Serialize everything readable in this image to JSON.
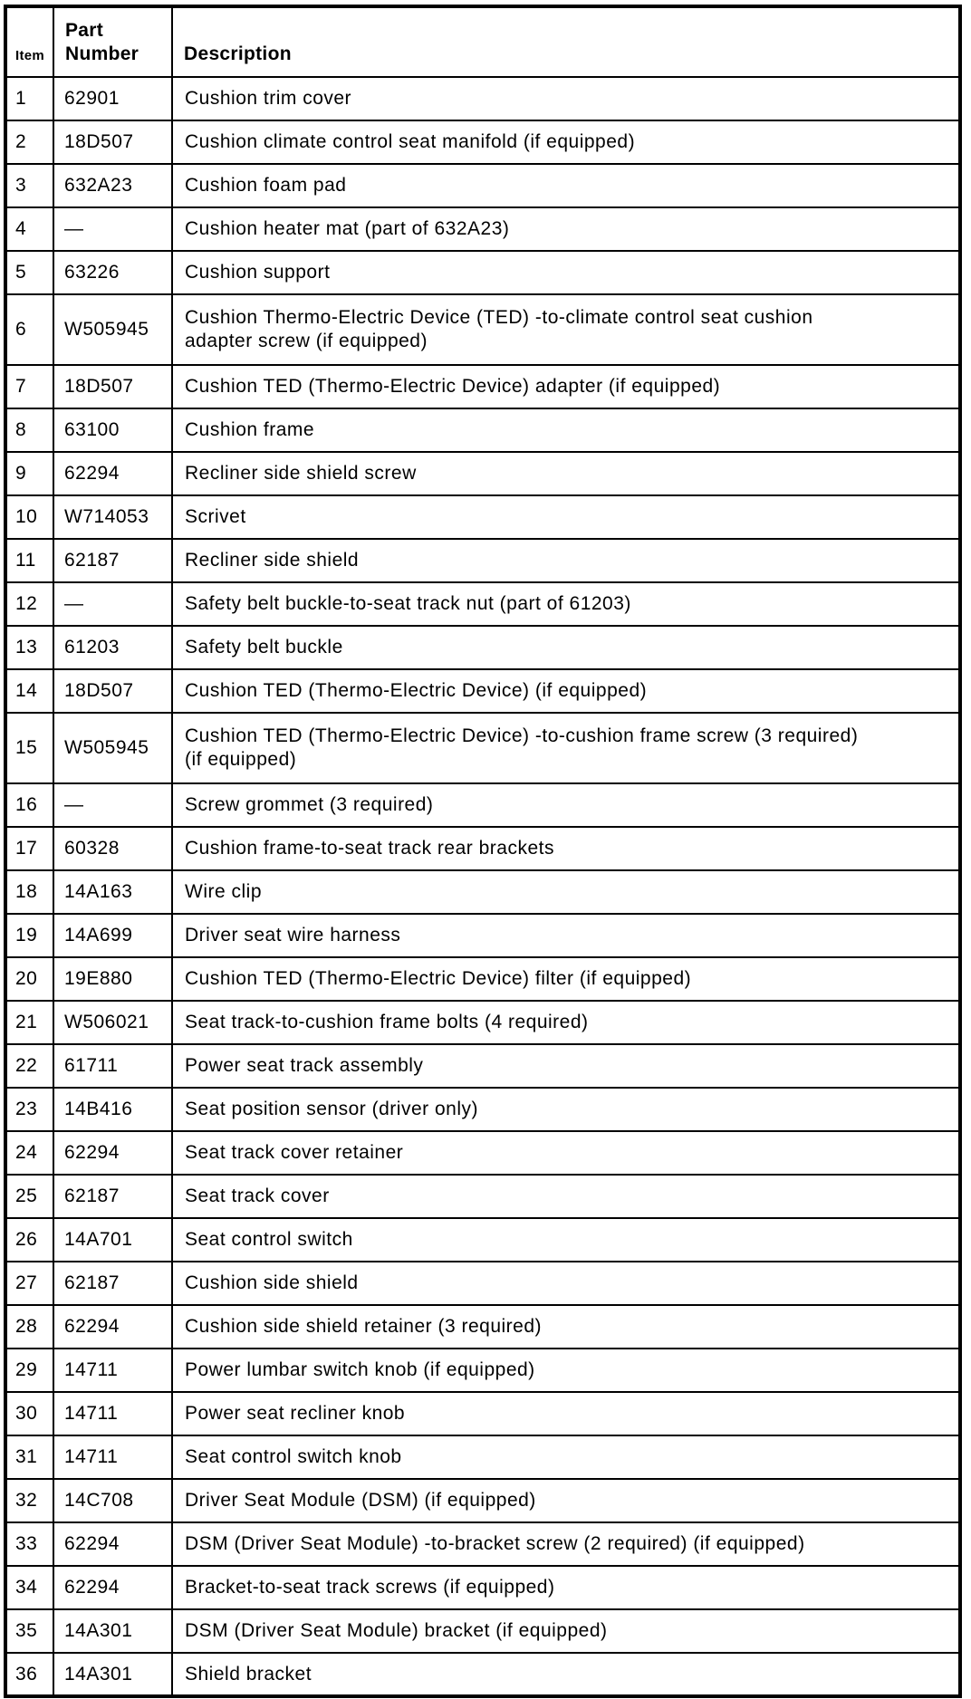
{
  "table": {
    "header": {
      "item": "Item",
      "part_number": "Part\nNumber",
      "description": "Description"
    },
    "rows": [
      {
        "item": "1",
        "part_number": "62901",
        "description": "Cushion trim cover"
      },
      {
        "item": "2",
        "part_number": "18D507",
        "description": "Cushion climate control seat manifold (if equipped)"
      },
      {
        "item": "3",
        "part_number": "632A23",
        "description": "Cushion foam pad"
      },
      {
        "item": "4",
        "part_number": "—",
        "description": "Cushion heater mat (part of 632A23)"
      },
      {
        "item": "5",
        "part_number": "63226",
        "description": "Cushion support"
      },
      {
        "item": "6",
        "part_number": "W505945",
        "description": "Cushion Thermo-Electric Device (TED) -to-climate control seat cushion\nadapter screw (if equipped)"
      },
      {
        "item": "7",
        "part_number": "18D507",
        "description": "Cushion TED (Thermo-Electric Device) adapter (if equipped)"
      },
      {
        "item": "8",
        "part_number": "63100",
        "description": "Cushion frame"
      },
      {
        "item": "9",
        "part_number": "62294",
        "description": "Recliner side shield screw"
      },
      {
        "item": "10",
        "part_number": "W714053",
        "description": "Scrivet"
      },
      {
        "item": "11",
        "part_number": "62187",
        "description": "Recliner side shield"
      },
      {
        "item": "12",
        "part_number": "—",
        "description": "Safety belt buckle-to-seat track nut (part of 61203)"
      },
      {
        "item": "13",
        "part_number": "61203",
        "description": "Safety belt buckle"
      },
      {
        "item": "14",
        "part_number": "18D507",
        "description": "Cushion TED (Thermo-Electric Device) (if equipped)"
      },
      {
        "item": "15",
        "part_number": "W505945",
        "description": "Cushion TED (Thermo-Electric Device) -to-cushion frame screw (3 required)\n(if equipped)"
      },
      {
        "item": "16",
        "part_number": "—",
        "description": "Screw grommet (3 required)"
      },
      {
        "item": "17",
        "part_number": "60328",
        "description": "Cushion frame-to-seat track rear brackets"
      },
      {
        "item": "18",
        "part_number": "14A163",
        "description": "Wire clip"
      },
      {
        "item": "19",
        "part_number": "14A699",
        "description": "Driver seat wire harness"
      },
      {
        "item": "20",
        "part_number": "19E880",
        "description": "Cushion TED (Thermo-Electric Device) filter (if equipped)"
      },
      {
        "item": "21",
        "part_number": "W506021",
        "description": "Seat track-to-cushion frame bolts (4 required)"
      },
      {
        "item": "22",
        "part_number": "61711",
        "description": "Power seat track assembly"
      },
      {
        "item": "23",
        "part_number": "14B416",
        "description": "Seat position sensor (driver only)"
      },
      {
        "item": "24",
        "part_number": "62294",
        "description": "Seat track cover retainer"
      },
      {
        "item": "25",
        "part_number": "62187",
        "description": "Seat track cover"
      },
      {
        "item": "26",
        "part_number": "14A701",
        "description": "Seat control switch"
      },
      {
        "item": "27",
        "part_number": "62187",
        "description": "Cushion side shield"
      },
      {
        "item": "28",
        "part_number": "62294",
        "description": "Cushion side shield retainer (3 required)"
      },
      {
        "item": "29",
        "part_number": "14711",
        "description": "Power lumbar switch knob (if equipped)"
      },
      {
        "item": "30",
        "part_number": "14711",
        "description": "Power seat recliner knob"
      },
      {
        "item": "31",
        "part_number": "14711",
        "description": "Seat control switch knob"
      },
      {
        "item": "32",
        "part_number": "14C708",
        "description": "Driver Seat Module (DSM) (if equipped)"
      },
      {
        "item": "33",
        "part_number": "62294",
        "description": "DSM (Driver Seat Module) -to-bracket screw (2 required) (if equipped)"
      },
      {
        "item": "34",
        "part_number": "62294",
        "description": "Bracket-to-seat track screws (if equipped)"
      },
      {
        "item": "35",
        "part_number": "14A301",
        "description": "DSM (Driver Seat Module) bracket (if equipped)"
      },
      {
        "item": "36",
        "part_number": "14A301",
        "description": "Shield bracket"
      }
    ]
  }
}
